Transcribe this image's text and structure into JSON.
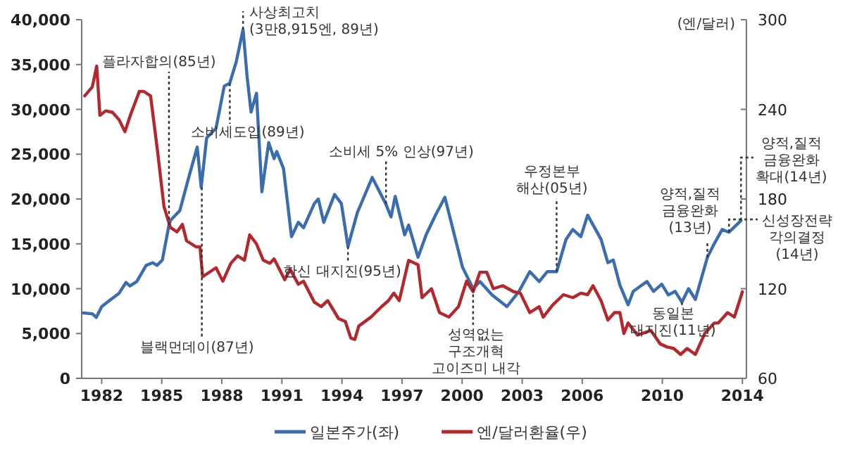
{
  "chart_data": {
    "type": "line",
    "xlim": [
      1981,
      2014.2
    ],
    "xticks": [
      1982,
      1985,
      1988,
      1991,
      1994,
      1997,
      2000,
      2003,
      2006,
      2010,
      2014
    ],
    "ylim": [
      0,
      40000
    ],
    "yticks": [
      {
        "value": 0,
        "label": "0"
      },
      {
        "value": 5000,
        "label": "5,000"
      },
      {
        "value": 10000,
        "label": "10,000"
      },
      {
        "value": 15000,
        "label": "15,000"
      },
      {
        "value": 20000,
        "label": "20,000"
      },
      {
        "value": 25000,
        "label": "25,000"
      },
      {
        "value": 30000,
        "label": "30,000"
      },
      {
        "value": 35000,
        "label": "35,000"
      },
      {
        "value": 40000,
        "label": "40,000"
      }
    ],
    "y2lim": [
      60,
      300
    ],
    "y2ticks": [
      60,
      120,
      180,
      240,
      300
    ],
    "y2label": "(엔/달러)",
    "legend": "bottom",
    "series": [
      {
        "name": "일본주가(좌)",
        "color": "#3a6db0",
        "x": [
          1981.06,
          1981.53,
          1981.73,
          1982.0,
          1982.4,
          1982.87,
          1983.21,
          1983.41,
          1983.75,
          1984.22,
          1984.55,
          1984.76,
          1985.03,
          1985.36,
          1985.43,
          1985.9,
          1986.37,
          1986.77,
          1986.97,
          1987.24,
          1987.71,
          1988.12,
          1988.39,
          1988.72,
          1989.06,
          1989.26,
          1989.46,
          1989.73,
          1990.0,
          1990.34,
          1990.61,
          1990.74,
          1991.08,
          1991.48,
          1991.82,
          1992.08,
          1992.62,
          1992.82,
          1993.09,
          1993.63,
          1993.97,
          1994.3,
          1994.77,
          1995.51,
          1996.18,
          1996.45,
          1996.66,
          1997.13,
          1997.33,
          1997.8,
          1998.2,
          1998.67,
          1999.14,
          2000.02,
          2000.55,
          2000.89,
          2001.5,
          2002.24,
          2002.84,
          2003.38,
          2003.85,
          2004.25,
          2004.72,
          2005.19,
          2005.53,
          2005.93,
          2006.27,
          2006.94,
          2007.28,
          2007.55,
          2007.88,
          2008.29,
          2008.55,
          2009.23,
          2009.56,
          2009.97,
          2010.3,
          2010.64,
          2010.98,
          2011.31,
          2011.65,
          2012.25,
          2012.59,
          2012.99,
          2013.33,
          2013.93
        ],
        "values": [
          7300,
          7200,
          6800,
          8000,
          8700,
          9500,
          10700,
          10300,
          10800,
          12600,
          12900,
          12600,
          13200,
          17100,
          17600,
          18700,
          22600,
          25800,
          21300,
          26800,
          27900,
          32600,
          32900,
          35300,
          38915,
          33700,
          29700,
          31800,
          20800,
          26300,
          24500,
          25300,
          23400,
          15800,
          17400,
          16800,
          19500,
          20000,
          17400,
          20500,
          19500,
          14700,
          18500,
          22400,
          19500,
          18000,
          20300,
          16000,
          17100,
          13500,
          16000,
          18200,
          20200,
          12400,
          10000,
          10800,
          9300,
          8000,
          9700,
          11900,
          10800,
          11900,
          11900,
          15500,
          16600,
          15800,
          18200,
          15500,
          12900,
          13200,
          10400,
          8200,
          9700,
          10800,
          9700,
          10500,
          9300,
          9700,
          8500,
          10000,
          8800,
          13500,
          15000,
          16600,
          16300,
          17600
        ]
      },
      {
        "name": "엔/달러환율(우)",
        "color": "#b5272d",
        "axis": "y2",
        "x": [
          1981.15,
          1981.53,
          1981.75,
          1981.91,
          1982.2,
          1982.54,
          1982.87,
          1983.16,
          1983.43,
          1983.88,
          1984.1,
          1984.44,
          1984.78,
          1985.11,
          1985.43,
          1985.76,
          1986.03,
          1986.24,
          1986.71,
          1986.91,
          1987.04,
          1987.71,
          1988.05,
          1988.45,
          1988.79,
          1989.13,
          1989.39,
          1989.73,
          1990.07,
          1990.4,
          1990.61,
          1991.14,
          1991.41,
          1991.82,
          1992.08,
          1992.62,
          1992.96,
          1993.29,
          1993.83,
          1994.17,
          1994.44,
          1994.64,
          1994.84,
          1995.45,
          1995.98,
          1996.32,
          1996.59,
          1996.86,
          1997.33,
          1997.8,
          1998.0,
          1998.47,
          1998.87,
          1999.34,
          1999.82,
          2000.22,
          2000.55,
          2000.89,
          2001.23,
          2001.56,
          2002.03,
          2002.57,
          2002.91,
          2003.38,
          2003.85,
          2004.05,
          2004.52,
          2005.06,
          2005.53,
          2005.93,
          2006.27,
          2006.54,
          2006.94,
          2007.28,
          2007.61,
          2007.88,
          2008.08,
          2008.29,
          2008.76,
          2009.43,
          2009.9,
          2010.24,
          2010.57,
          2010.91,
          2011.24,
          2011.65,
          2012.12,
          2012.59,
          2012.79,
          2013.26,
          2013.6,
          2014.0
        ],
        "values": [
          249,
          255,
          269,
          236,
          239,
          238,
          233,
          225,
          236,
          252,
          252,
          249,
          213,
          175,
          161,
          158,
          163,
          152,
          148,
          148,
          128,
          134,
          125,
          137,
          142,
          139,
          156,
          150,
          139,
          137,
          140,
          126,
          133,
          123,
          125,
          111,
          108,
          112,
          100,
          98,
          87,
          86,
          95,
          101,
          108,
          112,
          117,
          112,
          139,
          136,
          114,
          120,
          104,
          101,
          108,
          125,
          118,
          131,
          131,
          120,
          122,
          118,
          117,
          104,
          108,
          101,
          109,
          116,
          114,
          117,
          116,
          122,
          112,
          99,
          104,
          104,
          90,
          97,
          89,
          92,
          83,
          81,
          80,
          76,
          80,
          76,
          90,
          97,
          97,
          104,
          101,
          118
        ]
      }
    ],
    "annotations": [
      {
        "text": "플라자합의(85년)",
        "x": 1985.36,
        "y": 17100
      },
      {
        "text": "블랙먼데이(87년)",
        "x": 1987.0,
        "y": 21300
      },
      {
        "text": "소비세도입(89년)",
        "x": 1988.4,
        "y": 32900
      },
      {
        "text": "사상최고치\n(3만8,915엔, 89년)",
        "x": 1989.06,
        "y": 38915
      },
      {
        "text": "한신 대지진(95년)",
        "x": 1994.3,
        "y": 14700
      },
      {
        "text": "소비세 5% 인상(97년)",
        "x": 1996.2,
        "y": 19500
      },
      {
        "text": "성역없는\n구조개혁\n고이즈미 내각",
        "x": 2000.55,
        "y": 10000
      },
      {
        "text": "우정본부\n해산(05년)",
        "x": 2004.72,
        "y": 11900
      },
      {
        "text": "양적,질적\n금융완화\n(13년)",
        "x": 2012.25,
        "y": 13500
      },
      {
        "text": "동일본\n대지진(11년)",
        "x": 2010.98,
        "y": 8500
      },
      {
        "text": "양적,질적\n금융완화\n확대(14년)",
        "x": 2013.93,
        "y": 17600
      },
      {
        "text": "신성장전략\n각의결정\n(14년)",
        "x": 2013.33,
        "y": 16300
      }
    ]
  }
}
